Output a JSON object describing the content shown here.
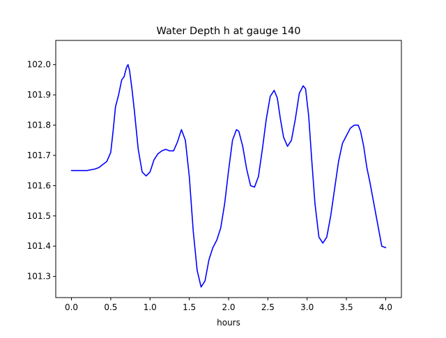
{
  "chart_data": {
    "type": "line",
    "title": "Water Depth h at gauge 140",
    "xlabel": "hours",
    "ylabel": "",
    "xlim": [
      -0.2,
      4.2
    ],
    "ylim": [
      101.23,
      102.08
    ],
    "xticks": [
      0.0,
      0.5,
      1.0,
      1.5,
      2.0,
      2.5,
      3.0,
      3.5,
      4.0
    ],
    "xtick_labels": [
      "0.0",
      "0.5",
      "1.0",
      "1.5",
      "2.0",
      "2.5",
      "3.0",
      "3.5",
      "4.0"
    ],
    "yticks": [
      101.3,
      101.4,
      101.5,
      101.6,
      101.7,
      101.8,
      101.9,
      102.0
    ],
    "ytick_labels": [
      "101.3",
      "101.4",
      "101.5",
      "101.6",
      "101.7",
      "101.8",
      "101.9",
      "102.0"
    ],
    "grid": false,
    "legend": "none",
    "series": [
      {
        "color": "#0000ff",
        "x": [
          0.0,
          0.1,
          0.2,
          0.3,
          0.35,
          0.4,
          0.45,
          0.5,
          0.53,
          0.56,
          0.6,
          0.64,
          0.67,
          0.7,
          0.72,
          0.74,
          0.77,
          0.8,
          0.85,
          0.9,
          0.95,
          1.0,
          1.05,
          1.1,
          1.15,
          1.2,
          1.25,
          1.3,
          1.35,
          1.4,
          1.45,
          1.5,
          1.55,
          1.6,
          1.65,
          1.7,
          1.75,
          1.8,
          1.85,
          1.9,
          1.95,
          2.0,
          2.05,
          2.1,
          2.13,
          2.18,
          2.23,
          2.28,
          2.33,
          2.38,
          2.43,
          2.48,
          2.53,
          2.58,
          2.62,
          2.66,
          2.7,
          2.75,
          2.8,
          2.85,
          2.9,
          2.95,
          2.98,
          3.02,
          3.06,
          3.1,
          3.15,
          3.2,
          3.25,
          3.3,
          3.35,
          3.4,
          3.45,
          3.5,
          3.55,
          3.6,
          3.65,
          3.68,
          3.72,
          3.76,
          3.8,
          3.85,
          3.9,
          3.95,
          4.0
        ],
        "y": [
          101.65,
          101.65,
          101.65,
          101.655,
          101.66,
          101.67,
          101.68,
          101.71,
          101.78,
          101.86,
          101.9,
          101.95,
          101.96,
          101.99,
          102.0,
          101.98,
          101.92,
          101.85,
          101.72,
          101.645,
          101.632,
          101.645,
          101.685,
          101.705,
          101.715,
          101.72,
          101.715,
          101.715,
          101.745,
          101.785,
          101.75,
          101.63,
          101.45,
          101.32,
          101.265,
          101.285,
          101.355,
          101.395,
          101.42,
          101.46,
          101.54,
          101.65,
          101.75,
          101.785,
          101.78,
          101.73,
          101.655,
          101.6,
          101.595,
          101.63,
          101.72,
          101.82,
          101.895,
          101.915,
          101.89,
          101.82,
          101.76,
          101.73,
          101.75,
          101.82,
          101.905,
          101.93,
          101.92,
          101.83,
          101.68,
          101.54,
          101.43,
          101.41,
          101.43,
          101.5,
          101.59,
          101.68,
          101.74,
          101.765,
          101.79,
          101.8,
          101.8,
          101.78,
          101.73,
          101.66,
          101.61,
          101.54,
          101.47,
          101.4,
          101.395
        ]
      }
    ]
  }
}
